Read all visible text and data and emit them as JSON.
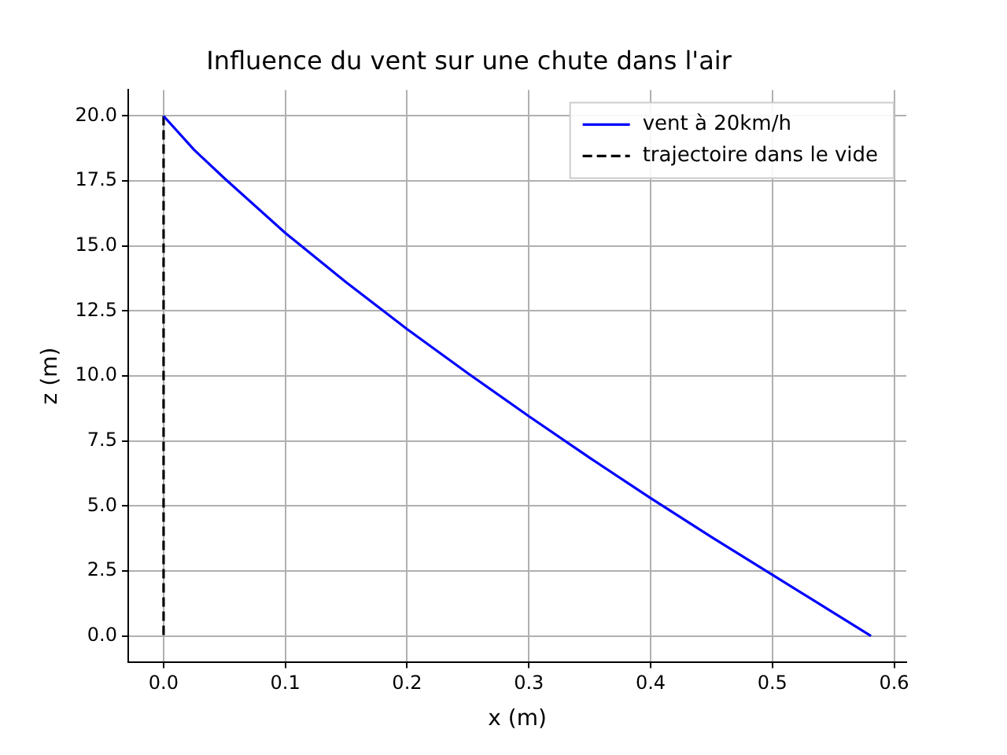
{
  "chart_data": {
    "type": "line",
    "title": "Influence du vent sur une chute dans l'air",
    "xlabel": "x (m)",
    "ylabel": "z (m)",
    "xlim": [
      -0.029,
      0.61
    ],
    "ylim": [
      -1,
      21
    ],
    "xticks": [
      {
        "value": 0,
        "label": "0.0"
      },
      {
        "value": 0.1,
        "label": "0.1"
      },
      {
        "value": 0.2,
        "label": "0.2"
      },
      {
        "value": 0.3,
        "label": "0.3"
      },
      {
        "value": 0.4,
        "label": "0.4"
      },
      {
        "value": 0.5,
        "label": "0.5"
      },
      {
        "value": 0.6,
        "label": "0.6"
      }
    ],
    "yticks": [
      {
        "value": 0,
        "label": "0.0"
      },
      {
        "value": 2.5,
        "label": "2.5"
      },
      {
        "value": 5,
        "label": "5.0"
      },
      {
        "value": 7.5,
        "label": "7.5"
      },
      {
        "value": 10,
        "label": "10.0"
      },
      {
        "value": 12.5,
        "label": "12.5"
      },
      {
        "value": 15,
        "label": "15.0"
      },
      {
        "value": 17.5,
        "label": "17.5"
      },
      {
        "value": 20,
        "label": "20.0"
      }
    ],
    "grid": true,
    "legend": "top right",
    "series": [
      {
        "name": "vent à 20km/h",
        "color": "#0000ff",
        "line_style": "solid",
        "x": [
          0,
          0.025,
          0.05,
          0.1,
          0.15,
          0.2,
          0.25,
          0.3,
          0.35,
          0.4,
          0.45,
          0.5,
          0.55,
          0.581
        ],
        "values": [
          20,
          18.7,
          17.6,
          15.5,
          13.6,
          11.8,
          10.1,
          8.45,
          6.85,
          5.3,
          3.8,
          2.35,
          0.9,
          0
        ]
      },
      {
        "name": "trajectoire dans le vide",
        "color": "#000000",
        "line_style": "dashed",
        "x": [
          0,
          0
        ],
        "values": [
          20,
          0
        ]
      }
    ]
  }
}
